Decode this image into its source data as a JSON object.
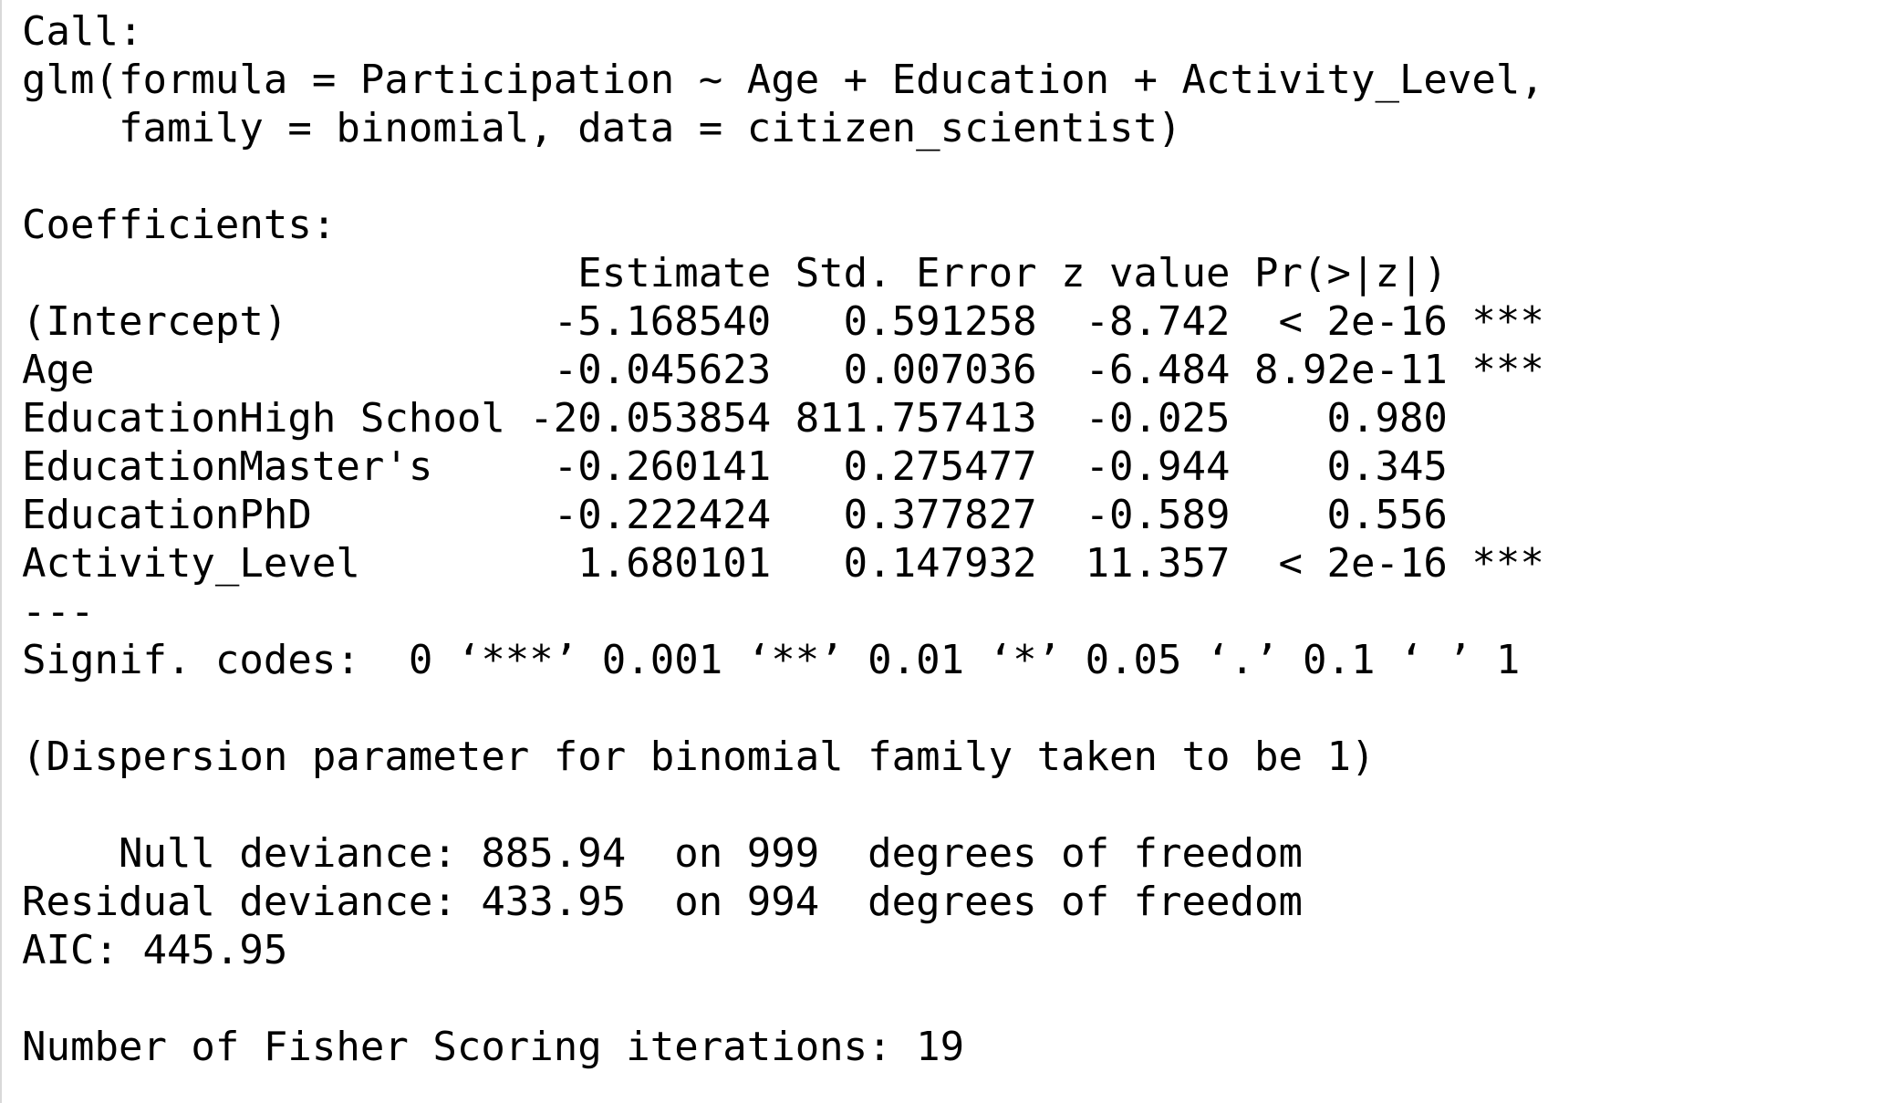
{
  "call": {
    "header": "Call:",
    "line1": "glm(formula = Participation ~ Age + Education + Activity_Level,",
    "line2": "    family = binomial, data = citizen_scientist)"
  },
  "coefficients": {
    "header": "Coefficients:",
    "columns": [
      "Estimate",
      "Std. Error",
      "z value",
      "Pr(>|z|)"
    ],
    "header_row": "                       Estimate Std. Error z value Pr(>|z|)    ",
    "rows": [
      {
        "term": "(Intercept)",
        "estimate": "-5.168540",
        "std_error": "0.591258",
        "z_value": "-8.742",
        "p_value": "< 2e-16",
        "signif": "***",
        "text": "(Intercept)           -5.168540   0.591258  -8.742  < 2e-16 ***"
      },
      {
        "term": "Age",
        "estimate": "-0.045623",
        "std_error": "0.007036",
        "z_value": "-6.484",
        "p_value": "8.92e-11",
        "signif": "***",
        "text": "Age                   -0.045623   0.007036  -6.484 8.92e-11 ***"
      },
      {
        "term": "EducationHigh School",
        "estimate": "-20.053854",
        "std_error": "811.757413",
        "z_value": "-0.025",
        "p_value": "0.980",
        "signif": "",
        "text": "EducationHigh School -20.053854 811.757413  -0.025    0.980    "
      },
      {
        "term": "EducationMaster's",
        "estimate": "-0.260141",
        "std_error": "0.275477",
        "z_value": "-0.944",
        "p_value": "0.345",
        "signif": "",
        "text": "EducationMaster's     -0.260141   0.275477  -0.944    0.345    "
      },
      {
        "term": "EducationPhD",
        "estimate": "-0.222424",
        "std_error": "0.377827",
        "z_value": "-0.589",
        "p_value": "0.556",
        "signif": "",
        "text": "EducationPhD          -0.222424   0.377827  -0.589    0.556    "
      },
      {
        "term": "Activity_Level",
        "estimate": "1.680101",
        "std_error": "0.147932",
        "z_value": "11.357",
        "p_value": "< 2e-16",
        "signif": "***",
        "text": "Activity_Level         1.680101   0.147932  11.357  < 2e-16 ***"
      }
    ]
  },
  "separator": "---",
  "signif_codes": "Signif. codes:  0 ‘***’ 0.001 ‘**’ 0.01 ‘*’ 0.05 ‘.’ 0.1 ‘ ’ 1",
  "dispersion": "(Dispersion parameter for binomial family taken to be 1)",
  "deviance": {
    "null": {
      "label": "Null deviance:",
      "value": "885.94",
      "df": "999",
      "text": "    Null deviance: 885.94  on 999  degrees of freedom"
    },
    "residual": {
      "label": "Residual deviance:",
      "value": "433.95",
      "df": "994",
      "text": "Residual deviance: 433.95  on 994  degrees of freedom"
    }
  },
  "aic": "AIC: 445.95",
  "fisher": "Number of Fisher Scoring iterations: 19"
}
